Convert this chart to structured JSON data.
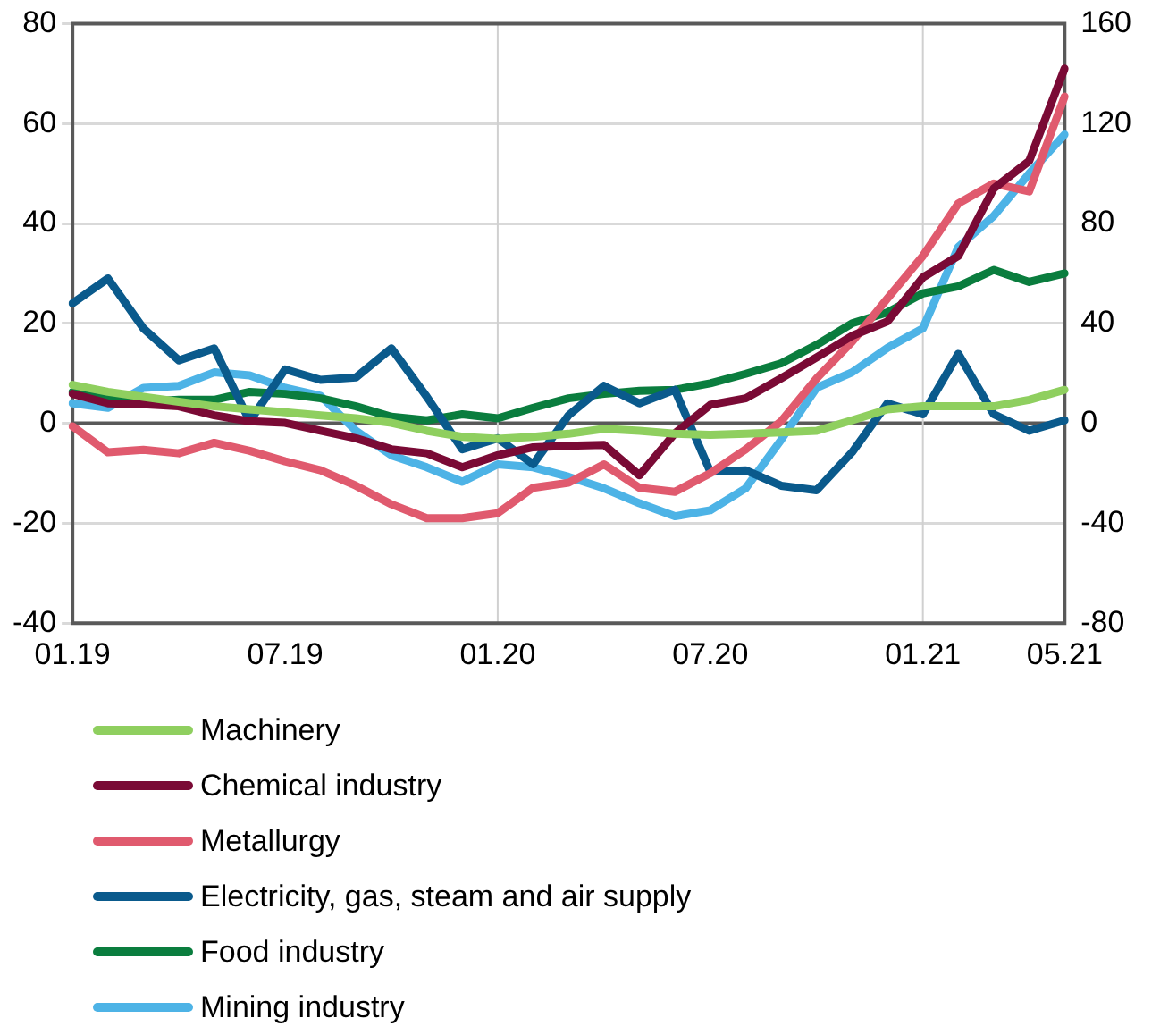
{
  "chart_data": {
    "type": "line",
    "categories": [
      "01.19",
      null,
      null,
      null,
      null,
      null,
      "07.19",
      null,
      null,
      null,
      null,
      null,
      "01.20",
      null,
      null,
      null,
      null,
      null,
      "07.20",
      null,
      null,
      null,
      null,
      null,
      "01.21",
      null,
      null,
      null,
      "05.21"
    ],
    "series": [
      {
        "name": "Machinery",
        "color": "#8fcf5f",
        "values": [
          7.7,
          6.3,
          5.3,
          4.3,
          3.4,
          2.8,
          2.2,
          1.6,
          1,
          0.1,
          -1.5,
          -2.7,
          -3.1,
          -2.7,
          -2.1,
          -1.1,
          -1.5,
          -2.1,
          -2.3,
          -2.1,
          -1.8,
          -1.5,
          0.6,
          2.8,
          3.4,
          3.4,
          3.4,
          4.7,
          6.7
        ]
      },
      {
        "name": "Chemical industry",
        "color": "#7a0a35",
        "values": [
          5.9,
          4,
          3.8,
          3.4,
          1.6,
          0.4,
          0.1,
          -1.5,
          -3,
          -5.2,
          -6,
          -8.8,
          -6.4,
          -4.8,
          -4.5,
          -4.3,
          -10.4,
          -2,
          3.7,
          5,
          9,
          13.2,
          17.5,
          20.4,
          29.2,
          33.5,
          47,
          52.5,
          71
        ]
      },
      {
        "name": "Metallurgy",
        "color": "#e05a6e",
        "values": [
          -0.6,
          -5.8,
          -5.3,
          -6,
          -3.9,
          -5.5,
          -7.6,
          -9.4,
          -12.5,
          -16.2,
          -19,
          -19,
          -18,
          -12.9,
          -11.9,
          -8.2,
          -12.9,
          -13.7,
          -10,
          -5.2,
          0.4,
          9,
          16.3,
          25,
          33.5,
          44,
          48,
          46.4,
          65.4
        ]
      },
      {
        "name": "Electricity, gas, steam and air supply",
        "color": "#0a5a8c",
        "values": [
          24,
          29,
          19,
          12.6,
          15,
          0.4,
          10.8,
          8.7,
          9.2,
          15,
          5.3,
          -5.2,
          -3,
          -8.2,
          1.6,
          7.5,
          4,
          6.7,
          -9.7,
          -9.4,
          -12.5,
          -13.4,
          -5.8,
          4,
          1.8,
          13.9,
          1.8,
          -1.5,
          0.6
        ]
      },
      {
        "name": "Food industry",
        "color": "#0a7d3e",
        "values": [
          6.3,
          5,
          4.3,
          4.7,
          4.7,
          6.3,
          5.9,
          5,
          3.4,
          1.3,
          0.6,
          1.8,
          1,
          3.1,
          5,
          5.9,
          6.5,
          6.7,
          8,
          9.9,
          12,
          15.7,
          20,
          22.2,
          26,
          27.4,
          30.7,
          28.3,
          30
        ]
      },
      {
        "name": "Mining industry",
        "color": "#4db3e6",
        "values": [
          4,
          3.1,
          7.1,
          7.5,
          10.2,
          9.6,
          7.1,
          5.5,
          -1.5,
          -6.4,
          -8.8,
          -11.7,
          -8.2,
          -8.8,
          -10.7,
          -13,
          -16,
          -18.6,
          -17.4,
          -13,
          -3.3,
          7.1,
          10.2,
          15.1,
          19,
          35.3,
          41.5,
          50,
          57.8
        ]
      }
    ],
    "ylim": [
      -40,
      80
    ],
    "yticks": [
      -40,
      -20,
      0,
      20,
      40,
      60,
      80
    ],
    "y2lim": [
      -80,
      160
    ],
    "y2ticks": [
      -80,
      -40,
      0,
      40,
      80,
      120,
      160
    ],
    "ref_lines": [
      {
        "axis": "y",
        "value": 0,
        "color": "#595959"
      },
      {
        "axis": "x",
        "value": "01.20",
        "color": "#d0d0d0"
      },
      {
        "axis": "x",
        "value": "01.21",
        "color": "#d0d0d0"
      }
    ],
    "grid": "y",
    "legend": "bottom",
    "marker": "none",
    "line_style": "solid"
  }
}
